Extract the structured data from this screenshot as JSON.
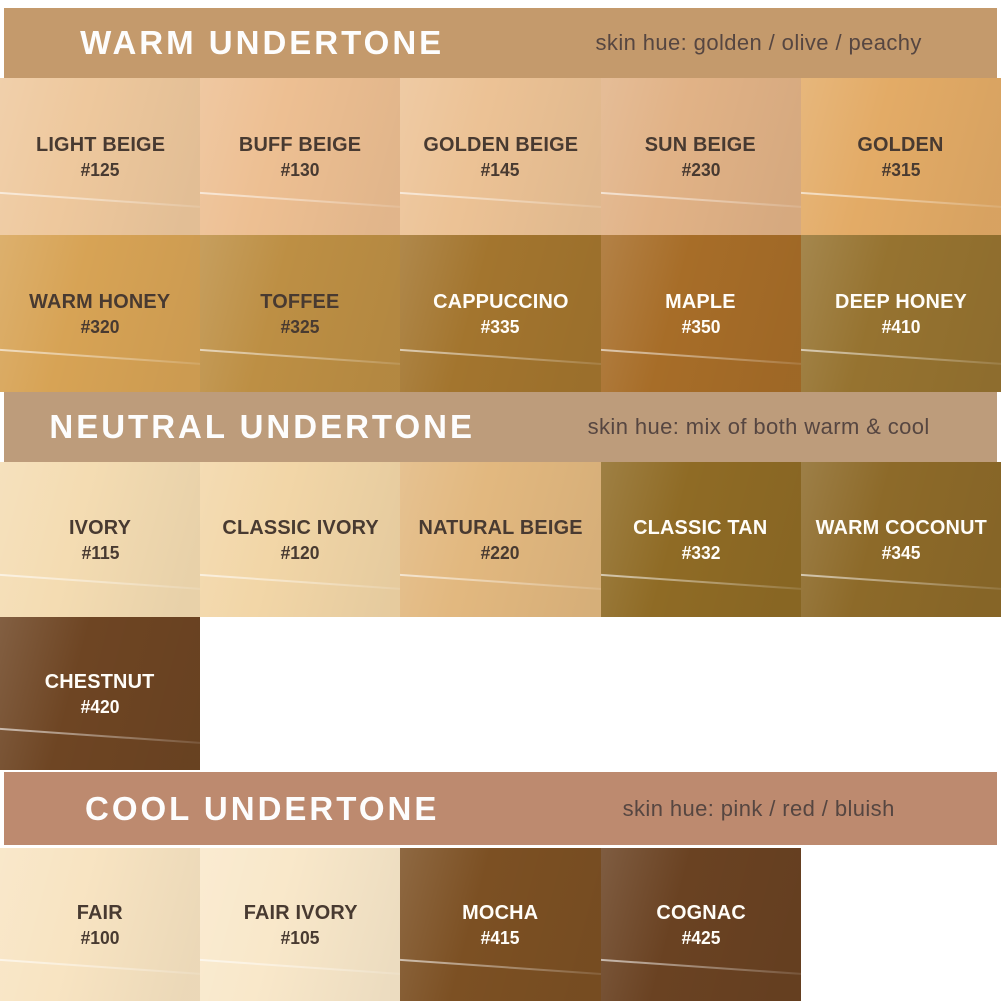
{
  "chart_data": {
    "type": "table",
    "title": "Foundation shade chart grouped by undertone",
    "groups": [
      {
        "undertone": "WARM UNDERTONE",
        "skin_hue": "skin hue: golden / olive / peachy",
        "shades": [
          [
            "LIGHT BEIGE",
            "#125"
          ],
          [
            "BUFF BEIGE",
            "#130"
          ],
          [
            "GOLDEN BEIGE",
            "#145"
          ],
          [
            "SUN BEIGE",
            "#230"
          ],
          [
            "GOLDEN",
            "#315"
          ],
          [
            "WARM HONEY",
            "#320"
          ],
          [
            "TOFFEE",
            "#325"
          ],
          [
            "CAPPUCCINO",
            "#335"
          ],
          [
            "MAPLE",
            "#350"
          ],
          [
            "DEEP HONEY",
            "#410"
          ]
        ]
      },
      {
        "undertone": "NEUTRAL UNDERTONE",
        "skin_hue": "skin hue: mix of both warm & cool",
        "shades": [
          [
            "IVORY",
            "#115"
          ],
          [
            "CLASSIC IVORY",
            "#120"
          ],
          [
            "NATURAL BEIGE",
            "#220"
          ],
          [
            "CLASSIC TAN",
            "#332"
          ],
          [
            "WARM COCONUT",
            "#345"
          ],
          [
            "CHESTNUT",
            "#420"
          ]
        ]
      },
      {
        "undertone": "COOL UNDERTONE",
        "skin_hue": "skin hue: pink / red / bluish",
        "shades": [
          [
            "FAIR",
            "#100"
          ],
          [
            "FAIR IVORY",
            "#105"
          ],
          [
            "MOCHA",
            "#415"
          ],
          [
            "COGNAC",
            "#425"
          ]
        ]
      }
    ]
  },
  "sections": [
    {
      "key": "warm",
      "title": "WARM UNDERTONE",
      "subtitle": "skin hue: golden / olive / peachy",
      "band_color": "#c49a6c",
      "rows": [
        [
          {
            "name": "LIGHT BEIGE",
            "code": "#125",
            "color": "#eec89d",
            "text": "dark"
          },
          {
            "name": "BUFF BEIGE",
            "code": "#130",
            "color": "#edbf92",
            "text": "dark"
          },
          {
            "name": "GOLDEN BEIGE",
            "code": "#145",
            "color": "#ecc295",
            "text": "dark"
          },
          {
            "name": "SUN BEIGE",
            "code": "#230",
            "color": "#e1b286",
            "text": "dark"
          },
          {
            "name": "GOLDEN",
            "code": "#315",
            "color": "#e3ab66",
            "text": "dark"
          }
        ],
        [
          {
            "name": "WARM HONEY",
            "code": "#320",
            "color": "#d7a355",
            "text": "dark"
          },
          {
            "name": "TOFFEE",
            "code": "#325",
            "color": "#bd8f44",
            "text": "dark"
          },
          {
            "name": "CAPPUCCINO",
            "code": "#335",
            "color": "#a3752e",
            "text": "light"
          },
          {
            "name": "MAPLE",
            "code": "#350",
            "color": "#a76d28",
            "text": "light"
          },
          {
            "name": "DEEP HONEY",
            "code": "#410",
            "color": "#967330",
            "text": "light"
          }
        ]
      ]
    },
    {
      "key": "neutral",
      "title": "NEUTRAL UNDERTONE",
      "subtitle": "skin hue: mix of both warm & cool",
      "band_color": "#bd9c7b",
      "rows": [
        [
          {
            "name": "IVORY",
            "code": "#115",
            "color": "#f4dcb2",
            "text": "dark"
          },
          {
            "name": "CLASSIC IVORY",
            "code": "#120",
            "color": "#f2d6a7",
            "text": "dark"
          },
          {
            "name": "NATURAL BEIGE",
            "code": "#220",
            "color": "#e2b87f",
            "text": "dark"
          },
          {
            "name": "CLASSIC TAN",
            "code": "#332",
            "color": "#8f6b25",
            "text": "light"
          },
          {
            "name": "WARM COCONUT",
            "code": "#345",
            "color": "#8d6a29",
            "text": "light"
          }
        ],
        [
          {
            "name": "CHESTNUT",
            "code": "#420",
            "color": "#6e4523",
            "text": "light"
          },
          null,
          null,
          null,
          null
        ]
      ]
    },
    {
      "key": "cool",
      "title": "COOL UNDERTONE",
      "subtitle": "skin hue: pink / red / bluish",
      "band_color": "#bd8a6f",
      "rows": [
        [
          {
            "name": "FAIR",
            "code": "#100",
            "color": "#f8e4c2",
            "text": "dark"
          },
          {
            "name": "FAIR IVORY",
            "code": "#105",
            "color": "#f9e8ca",
            "text": "dark"
          },
          {
            "name": "MOCHA",
            "code": "#415",
            "color": "#7c5023",
            "text": "light"
          },
          {
            "name": "COGNAC",
            "code": "#425",
            "color": "#6a4222",
            "text": "light"
          },
          null
        ]
      ]
    }
  ]
}
